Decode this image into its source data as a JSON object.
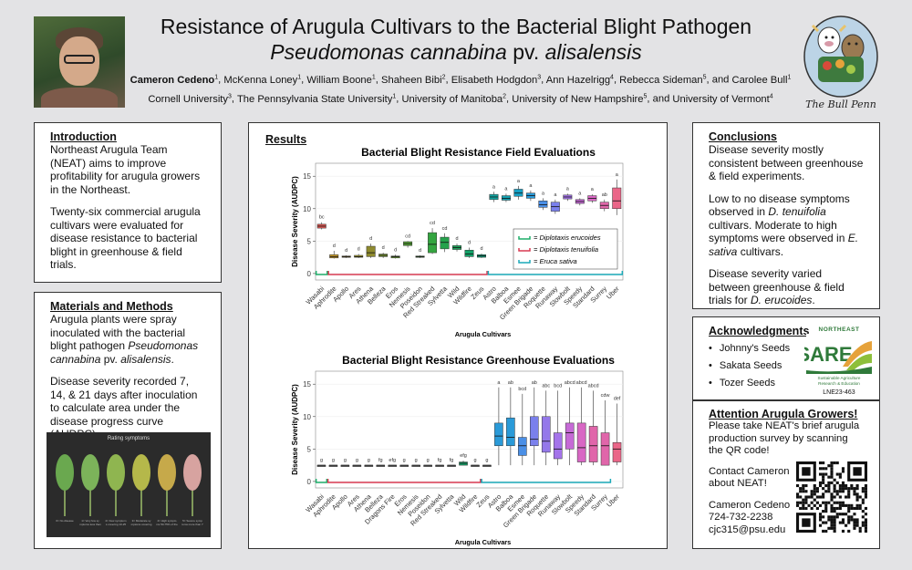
{
  "title": {
    "line1": "Resistance of Arugula Cultivars to the Bacterial Blight Pathogen",
    "line2_italic": "Pseudomonas cannabina",
    "line2_roman": " pv. ",
    "line2_italic2": "alisalensis"
  },
  "authors": [
    {
      "name": "Cameron Cedeno",
      "sup": "1",
      "bold": true
    },
    {
      "name": "McKenna Loney",
      "sup": "1"
    },
    {
      "name": "William Boone",
      "sup": "1"
    },
    {
      "name": "Shaheen Bibi",
      "sup": "2"
    },
    {
      "name": "Elisabeth Hodgdon",
      "sup": "3"
    },
    {
      "name": "Ann Hazelrigg",
      "sup": "4"
    },
    {
      "name": "Rebecca Sideman",
      "sup": "5"
    },
    {
      "name": "Carolee Bull",
      "sup": "1"
    }
  ],
  "affiliations": [
    {
      "name": "Cornell University",
      "sup": "3"
    },
    {
      "name": "The Pennsylvania State University",
      "sup": "1"
    },
    {
      "name": "University of Manitoba",
      "sup": "2"
    },
    {
      "name": "University of New Hampshire",
      "sup": "5"
    },
    {
      "name": "University of Vermont",
      "sup": "4"
    }
  ],
  "logo_text": "The Bull Penn",
  "intro": {
    "heading": "Introduction",
    "p1": "Northeast Arugula Team (NEAT) aims to improve profitability for arugula growers in the Northeast.",
    "p2": "Twenty-six commercial arugula cultivars were evaluated for disease resistance to bacterial blight in greenhouse & field trials."
  },
  "methods": {
    "heading": "Materials and Methods",
    "p1a": "Arugula plants were spray inoculated with the bacterial blight pathogen ",
    "p1b": "Pseudomonas cannabina",
    "p1c": " pv. ",
    "p1d": "alisalensis",
    "p1e": ".",
    "p2": "Disease severity recorded 7, 14, & 21 days after inoculation to calculate area under the disease progress curve (AUDPC).",
    "image_caption": "Rating symptoms",
    "leaf_labels": [
      "0= No disease",
      "1= Very few symptoms less than 10% of the total leaf area",
      "2= Few symptoms covering 10-25% of the leaf area",
      "3= Moderate symptoms covering 25-50% of the leaf area",
      "4= High symptoms 50-75% of the leaf area",
      "5= Severe symptoms more than 75% of the leaf area"
    ]
  },
  "results": {
    "heading": "Results"
  },
  "cultivars": [
    "Wasabi",
    "Aphrodite",
    "Apollo",
    "Ares",
    "Athena",
    "Belleza",
    "Eros",
    "Nemesis",
    "Poseidon",
    "Red Streaked",
    "Sylvetta",
    "Wild",
    "Wildfire",
    "Zeus",
    "Astro",
    "Balboa",
    "Esmee",
    "Green Brigade",
    "Roquette",
    "Runaway",
    "Slowbolt",
    "Speedy",
    "Standard",
    "Surrey",
    "Uber"
  ],
  "chart_data": [
    {
      "type": "boxplot",
      "title": "Bacterial Blight Resistance Field Evaluations",
      "xlabel": "Arugula Cultivars",
      "ylabel": "Disease Severity (AUDPC)",
      "ylim": [
        -1,
        17
      ],
      "yticks": [
        0,
        5,
        10,
        15
      ],
      "legend": [
        "= Diplotaxis erucoides",
        "= Diplotaxis tenuifolia",
        "= Eruca sativa"
      ],
      "legend_placement": "right",
      "series": [
        {
          "name": "Wasabi",
          "group": "erucoides",
          "color": "#e05b56",
          "q1": 7.0,
          "med": 7.3,
          "q3": 7.6,
          "lo": 6.8,
          "hi": 7.9,
          "label": "bc"
        },
        {
          "name": "Aphrodite",
          "group": "tenuifolia",
          "color": "#c79a2a",
          "q1": 2.4,
          "med": 2.6,
          "q3": 2.9,
          "lo": 2.3,
          "hi": 3.5,
          "label": "d"
        },
        {
          "name": "Apollo",
          "group": "tenuifolia",
          "color": "#b2962c",
          "q1": 2.5,
          "med": 2.6,
          "q3": 2.7,
          "lo": 2.4,
          "hi": 2.8,
          "label": "d"
        },
        {
          "name": "Ares",
          "group": "tenuifolia",
          "color": "#a0982e",
          "q1": 2.5,
          "med": 2.6,
          "q3": 2.8,
          "lo": 2.4,
          "hi": 3.0,
          "label": "d"
        },
        {
          "name": "Athena",
          "group": "tenuifolia",
          "color": "#8e8a2e",
          "q1": 2.6,
          "med": 3.2,
          "q3": 4.2,
          "lo": 2.4,
          "hi": 4.6,
          "label": "d"
        },
        {
          "name": "Belleza",
          "group": "tenuifolia",
          "color": "#7a9a30",
          "q1": 2.6,
          "med": 2.8,
          "q3": 3.0,
          "lo": 2.4,
          "hi": 3.2,
          "label": "d"
        },
        {
          "name": "Eros",
          "group": "tenuifolia",
          "color": "#6a9c33",
          "q1": 2.4,
          "med": 2.6,
          "q3": 2.7,
          "lo": 2.3,
          "hi": 2.9,
          "label": "d"
        },
        {
          "name": "Nemesis",
          "group": "tenuifolia",
          "color": "#55a236",
          "q1": 4.3,
          "med": 4.6,
          "q3": 4.9,
          "lo": 4.0,
          "hi": 5.0,
          "label": "cd"
        },
        {
          "name": "Poseidon",
          "group": "tenuifolia",
          "color": "#44a43a",
          "q1": 2.5,
          "med": 2.6,
          "q3": 2.7,
          "lo": 2.4,
          "hi": 2.8,
          "label": "d"
        },
        {
          "name": "Red Streaked",
          "group": "tenuifolia",
          "color": "#34a540",
          "q1": 3.2,
          "med": 4.5,
          "q3": 6.3,
          "lo": 3.0,
          "hi": 7.0,
          "label": "cd"
        },
        {
          "name": "Sylvetta",
          "group": "tenuifolia",
          "color": "#25a24c",
          "q1": 3.8,
          "med": 4.8,
          "q3": 5.6,
          "lo": 3.3,
          "hi": 6.2,
          "label": "cd"
        },
        {
          "name": "Wild",
          "group": "tenuifolia",
          "color": "#1ea25a",
          "q1": 3.7,
          "med": 4.0,
          "q3": 4.3,
          "lo": 3.4,
          "hi": 4.6,
          "label": "d"
        },
        {
          "name": "Wildfire",
          "group": "tenuifolia",
          "color": "#14a068",
          "q1": 2.6,
          "med": 3.0,
          "q3": 3.6,
          "lo": 2.4,
          "hi": 4.0,
          "label": "d"
        },
        {
          "name": "Zeus",
          "group": "tenuifolia",
          "color": "#10a07a",
          "q1": 2.5,
          "med": 2.7,
          "q3": 2.9,
          "lo": 2.4,
          "hi": 3.1,
          "label": "d"
        },
        {
          "name": "Astro",
          "group": "sativa",
          "color": "#12a3a0",
          "q1": 11.4,
          "med": 11.8,
          "q3": 12.2,
          "lo": 11.0,
          "hi": 12.6,
          "label": "a"
        },
        {
          "name": "Balboa",
          "group": "sativa",
          "color": "#14a2b2",
          "q1": 11.3,
          "med": 11.6,
          "q3": 12.0,
          "lo": 11.0,
          "hi": 12.3,
          "label": "a"
        },
        {
          "name": "Esmee",
          "group": "sativa",
          "color": "#17a0c4",
          "q1": 11.9,
          "med": 12.4,
          "q3": 13.0,
          "lo": 11.4,
          "hi": 13.5,
          "label": "a"
        },
        {
          "name": "Green Brigade",
          "group": "sativa",
          "color": "#2a9ad8",
          "q1": 11.6,
          "med": 12.0,
          "q3": 12.4,
          "lo": 11.2,
          "hi": 12.8,
          "label": "a"
        },
        {
          "name": "Roquette",
          "group": "sativa",
          "color": "#4a8fe6",
          "q1": 10.2,
          "med": 10.6,
          "q3": 11.2,
          "lo": 9.8,
          "hi": 11.6,
          "label": "a"
        },
        {
          "name": "Runaway",
          "group": "sativa",
          "color": "#7a80ec",
          "q1": 9.6,
          "med": 10.3,
          "q3": 11.0,
          "lo": 9.2,
          "hi": 11.4,
          "label": "a"
        },
        {
          "name": "Slowbolt",
          "group": "sativa",
          "color": "#a474ea",
          "q1": 11.5,
          "med": 11.8,
          "q3": 12.1,
          "lo": 11.2,
          "hi": 12.3,
          "label": "a"
        },
        {
          "name": "Speedy",
          "group": "sativa",
          "color": "#c66ad6",
          "q1": 10.8,
          "med": 11.1,
          "q3": 11.4,
          "lo": 10.5,
          "hi": 11.6,
          "label": "a"
        },
        {
          "name": "Standard",
          "group": "sativa",
          "color": "#d867c4",
          "q1": 11.2,
          "med": 11.6,
          "q3": 12.0,
          "lo": 10.9,
          "hi": 12.2,
          "label": "a"
        },
        {
          "name": "Surrey",
          "group": "sativa",
          "color": "#e066aa",
          "q1": 10.0,
          "med": 10.5,
          "q3": 11.0,
          "lo": 9.6,
          "hi": 11.4,
          "label": "ab"
        },
        {
          "name": "Uber",
          "group": "sativa",
          "color": "#ea6688",
          "q1": 10.0,
          "med": 11.2,
          "q3": 13.2,
          "lo": 9.0,
          "hi": 14.5,
          "label": "a"
        }
      ]
    },
    {
      "type": "boxplot",
      "title": "Bacterial Blight Resistance Greenhouse Evaluations",
      "xlabel": "Arugula Cultivars",
      "ylabel": "Disease Severity (AUDPC)",
      "ylim": [
        -1,
        17
      ],
      "yticks": [
        0,
        5,
        10,
        15
      ],
      "series": [
        {
          "name": "Wasabi",
          "group": "erucoides",
          "color": "#5f5f5f",
          "q1": 2.5,
          "med": 2.5,
          "q3": 2.5,
          "lo": 2.5,
          "hi": 2.5,
          "label": "g"
        },
        {
          "name": "Aphrodite",
          "group": "tenuifolia",
          "color": "#5f5f5f",
          "q1": 2.5,
          "med": 2.5,
          "q3": 2.5,
          "lo": 2.5,
          "hi": 2.5,
          "label": "g"
        },
        {
          "name": "Apollo",
          "group": "tenuifolia",
          "color": "#5f5f5f",
          "q1": 2.5,
          "med": 2.5,
          "q3": 2.5,
          "lo": 2.5,
          "hi": 2.5,
          "label": "g"
        },
        {
          "name": "Ares",
          "group": "tenuifolia",
          "color": "#5f5f5f",
          "q1": 2.5,
          "med": 2.5,
          "q3": 2.5,
          "lo": 2.5,
          "hi": 2.5,
          "label": "g"
        },
        {
          "name": "Athena",
          "group": "tenuifolia",
          "color": "#5f5f5f",
          "q1": 2.5,
          "med": 2.5,
          "q3": 2.5,
          "lo": 2.5,
          "hi": 2.5,
          "label": "g"
        },
        {
          "name": "Belleza",
          "group": "tenuifolia",
          "color": "#5f5f5f",
          "q1": 2.5,
          "med": 2.5,
          "q3": 2.5,
          "lo": 2.5,
          "hi": 2.5,
          "label": "fg"
        },
        {
          "name": "Dragons Fire",
          "group": "tenuifolia",
          "color": "#5f5f5f",
          "q1": 2.5,
          "med": 2.5,
          "q3": 2.5,
          "lo": 2.5,
          "hi": 2.5,
          "label": "efg"
        },
        {
          "name": "Eros",
          "group": "tenuifolia",
          "color": "#5f5f5f",
          "q1": 2.5,
          "med": 2.5,
          "q3": 2.5,
          "lo": 2.5,
          "hi": 2.5,
          "label": "g"
        },
        {
          "name": "Nemesis",
          "group": "tenuifolia",
          "color": "#5f5f5f",
          "q1": 2.5,
          "med": 2.5,
          "q3": 2.5,
          "lo": 2.5,
          "hi": 2.5,
          "label": "g"
        },
        {
          "name": "Poseidon",
          "group": "tenuifolia",
          "color": "#5f5f5f",
          "q1": 2.5,
          "med": 2.5,
          "q3": 2.5,
          "lo": 2.5,
          "hi": 2.5,
          "label": "g"
        },
        {
          "name": "Red Streaked",
          "group": "tenuifolia",
          "color": "#5f5f5f",
          "q1": 2.5,
          "med": 2.5,
          "q3": 2.5,
          "lo": 2.5,
          "hi": 2.5,
          "label": "fg"
        },
        {
          "name": "Sylvetta",
          "group": "tenuifolia",
          "color": "#5f5f5f",
          "q1": 2.5,
          "med": 2.5,
          "q3": 2.5,
          "lo": 2.5,
          "hi": 2.5,
          "label": "fg"
        },
        {
          "name": "Wild",
          "group": "tenuifolia",
          "color": "#14a068",
          "q1": 2.5,
          "med": 2.8,
          "q3": 3.0,
          "lo": 2.5,
          "hi": 3.2,
          "label": "efg"
        },
        {
          "name": "Wildfire",
          "group": "tenuifolia",
          "color": "#5f5f5f",
          "q1": 2.5,
          "med": 2.5,
          "q3": 2.5,
          "lo": 2.5,
          "hi": 2.5,
          "label": "g"
        },
        {
          "name": "Zeus",
          "group": "tenuifolia",
          "color": "#5f5f5f",
          "q1": 2.5,
          "med": 2.5,
          "q3": 2.5,
          "lo": 2.5,
          "hi": 2.5,
          "label": "g"
        },
        {
          "name": "Astro",
          "group": "sativa",
          "color": "#2a9ad8",
          "q1": 5.5,
          "med": 7.0,
          "q3": 9.0,
          "lo": 2.5,
          "hi": 14.5,
          "label": "a"
        },
        {
          "name": "Balboa",
          "group": "sativa",
          "color": "#2a9ad8",
          "q1": 5.5,
          "med": 6.8,
          "q3": 9.8,
          "lo": 2.5,
          "hi": 14.5,
          "label": "ab"
        },
        {
          "name": "Esmee",
          "group": "sativa",
          "color": "#4a8fe6",
          "q1": 4.0,
          "med": 5.5,
          "q3": 6.8,
          "lo": 2.5,
          "hi": 13.5,
          "label": "bcd"
        },
        {
          "name": "Green Brigade",
          "group": "sativa",
          "color": "#7a80ec",
          "q1": 5.5,
          "med": 6.5,
          "q3": 10.0,
          "lo": 2.5,
          "hi": 14.5,
          "label": "ab"
        },
        {
          "name": "Roquette",
          "group": "sativa",
          "color": "#9478ea",
          "q1": 4.5,
          "med": 6.2,
          "q3": 10.0,
          "lo": 2.5,
          "hi": 14.0,
          "label": "abc"
        },
        {
          "name": "Runaway",
          "group": "sativa",
          "color": "#a474ea",
          "q1": 3.5,
          "med": 5.0,
          "q3": 7.5,
          "lo": 2.5,
          "hi": 14.0,
          "label": "bcd"
        },
        {
          "name": "Slowbolt",
          "group": "sativa",
          "color": "#c66ad6",
          "q1": 5.0,
          "med": 7.5,
          "q3": 9.0,
          "lo": 2.5,
          "hi": 14.5,
          "label": "abcd"
        },
        {
          "name": "Speedy",
          "group": "sativa",
          "color": "#d867c4",
          "q1": 3.0,
          "med": 5.2,
          "q3": 9.0,
          "lo": 2.5,
          "hi": 14.5,
          "label": "abcd"
        },
        {
          "name": "Standard",
          "group": "sativa",
          "color": "#e066aa",
          "q1": 3.0,
          "med": 5.5,
          "q3": 8.5,
          "lo": 2.5,
          "hi": 14.0,
          "label": "abcd"
        },
        {
          "name": "Surrey",
          "group": "sativa",
          "color": "#e066aa",
          "q1": 2.5,
          "med": 5.5,
          "q3": 7.5,
          "lo": 2.5,
          "hi": 12.5,
          "label": "cdw"
        },
        {
          "name": "Uber",
          "group": "sativa",
          "color": "#ea6688",
          "q1": 3.0,
          "med": 5.0,
          "q3": 6.0,
          "lo": 2.5,
          "hi": 12.0,
          "label": "def"
        }
      ]
    }
  ],
  "conclusions": {
    "heading": "Conclusions",
    "p1": "Disease severity mostly consistent between greenhouse & field experiments.",
    "p2a": "Low to no disease symptoms observed in ",
    "p2b": "D. tenuifolia",
    "p2c": " cultivars. Moderate to high symptoms were observed in ",
    "p2d": "E. sativa",
    "p2e": " cultivars.",
    "p3a": "Disease severity varied between greenhouse & field trials for ",
    "p3b": "D. erucoides",
    "p3c": "."
  },
  "ack": {
    "heading": "Acknowledgments",
    "items": [
      "Johnny's Seeds",
      "Sakata Seeds",
      "Tozer Seeds"
    ],
    "sare_top": "NORTHEAST",
    "sare_name": "SARE",
    "sare_sub": "Sustainable Agriculture Research & Education",
    "grant": "LNE23-463"
  },
  "attention": {
    "heading": "Attention Arugula Growers!",
    "p1": "Please take NEAT's brief arugula production survey by scanning the QR code!",
    "p2": "Contact Cameron about NEAT!",
    "contact_name": "Cameron Cedeno",
    "phone": "724-732-2238",
    "email": "cjc315@psu.edu"
  },
  "colors": {
    "erucoides": "#1fae6a",
    "tenuifolia": "#d93a52",
    "sativa": "#1aa9b8"
  }
}
